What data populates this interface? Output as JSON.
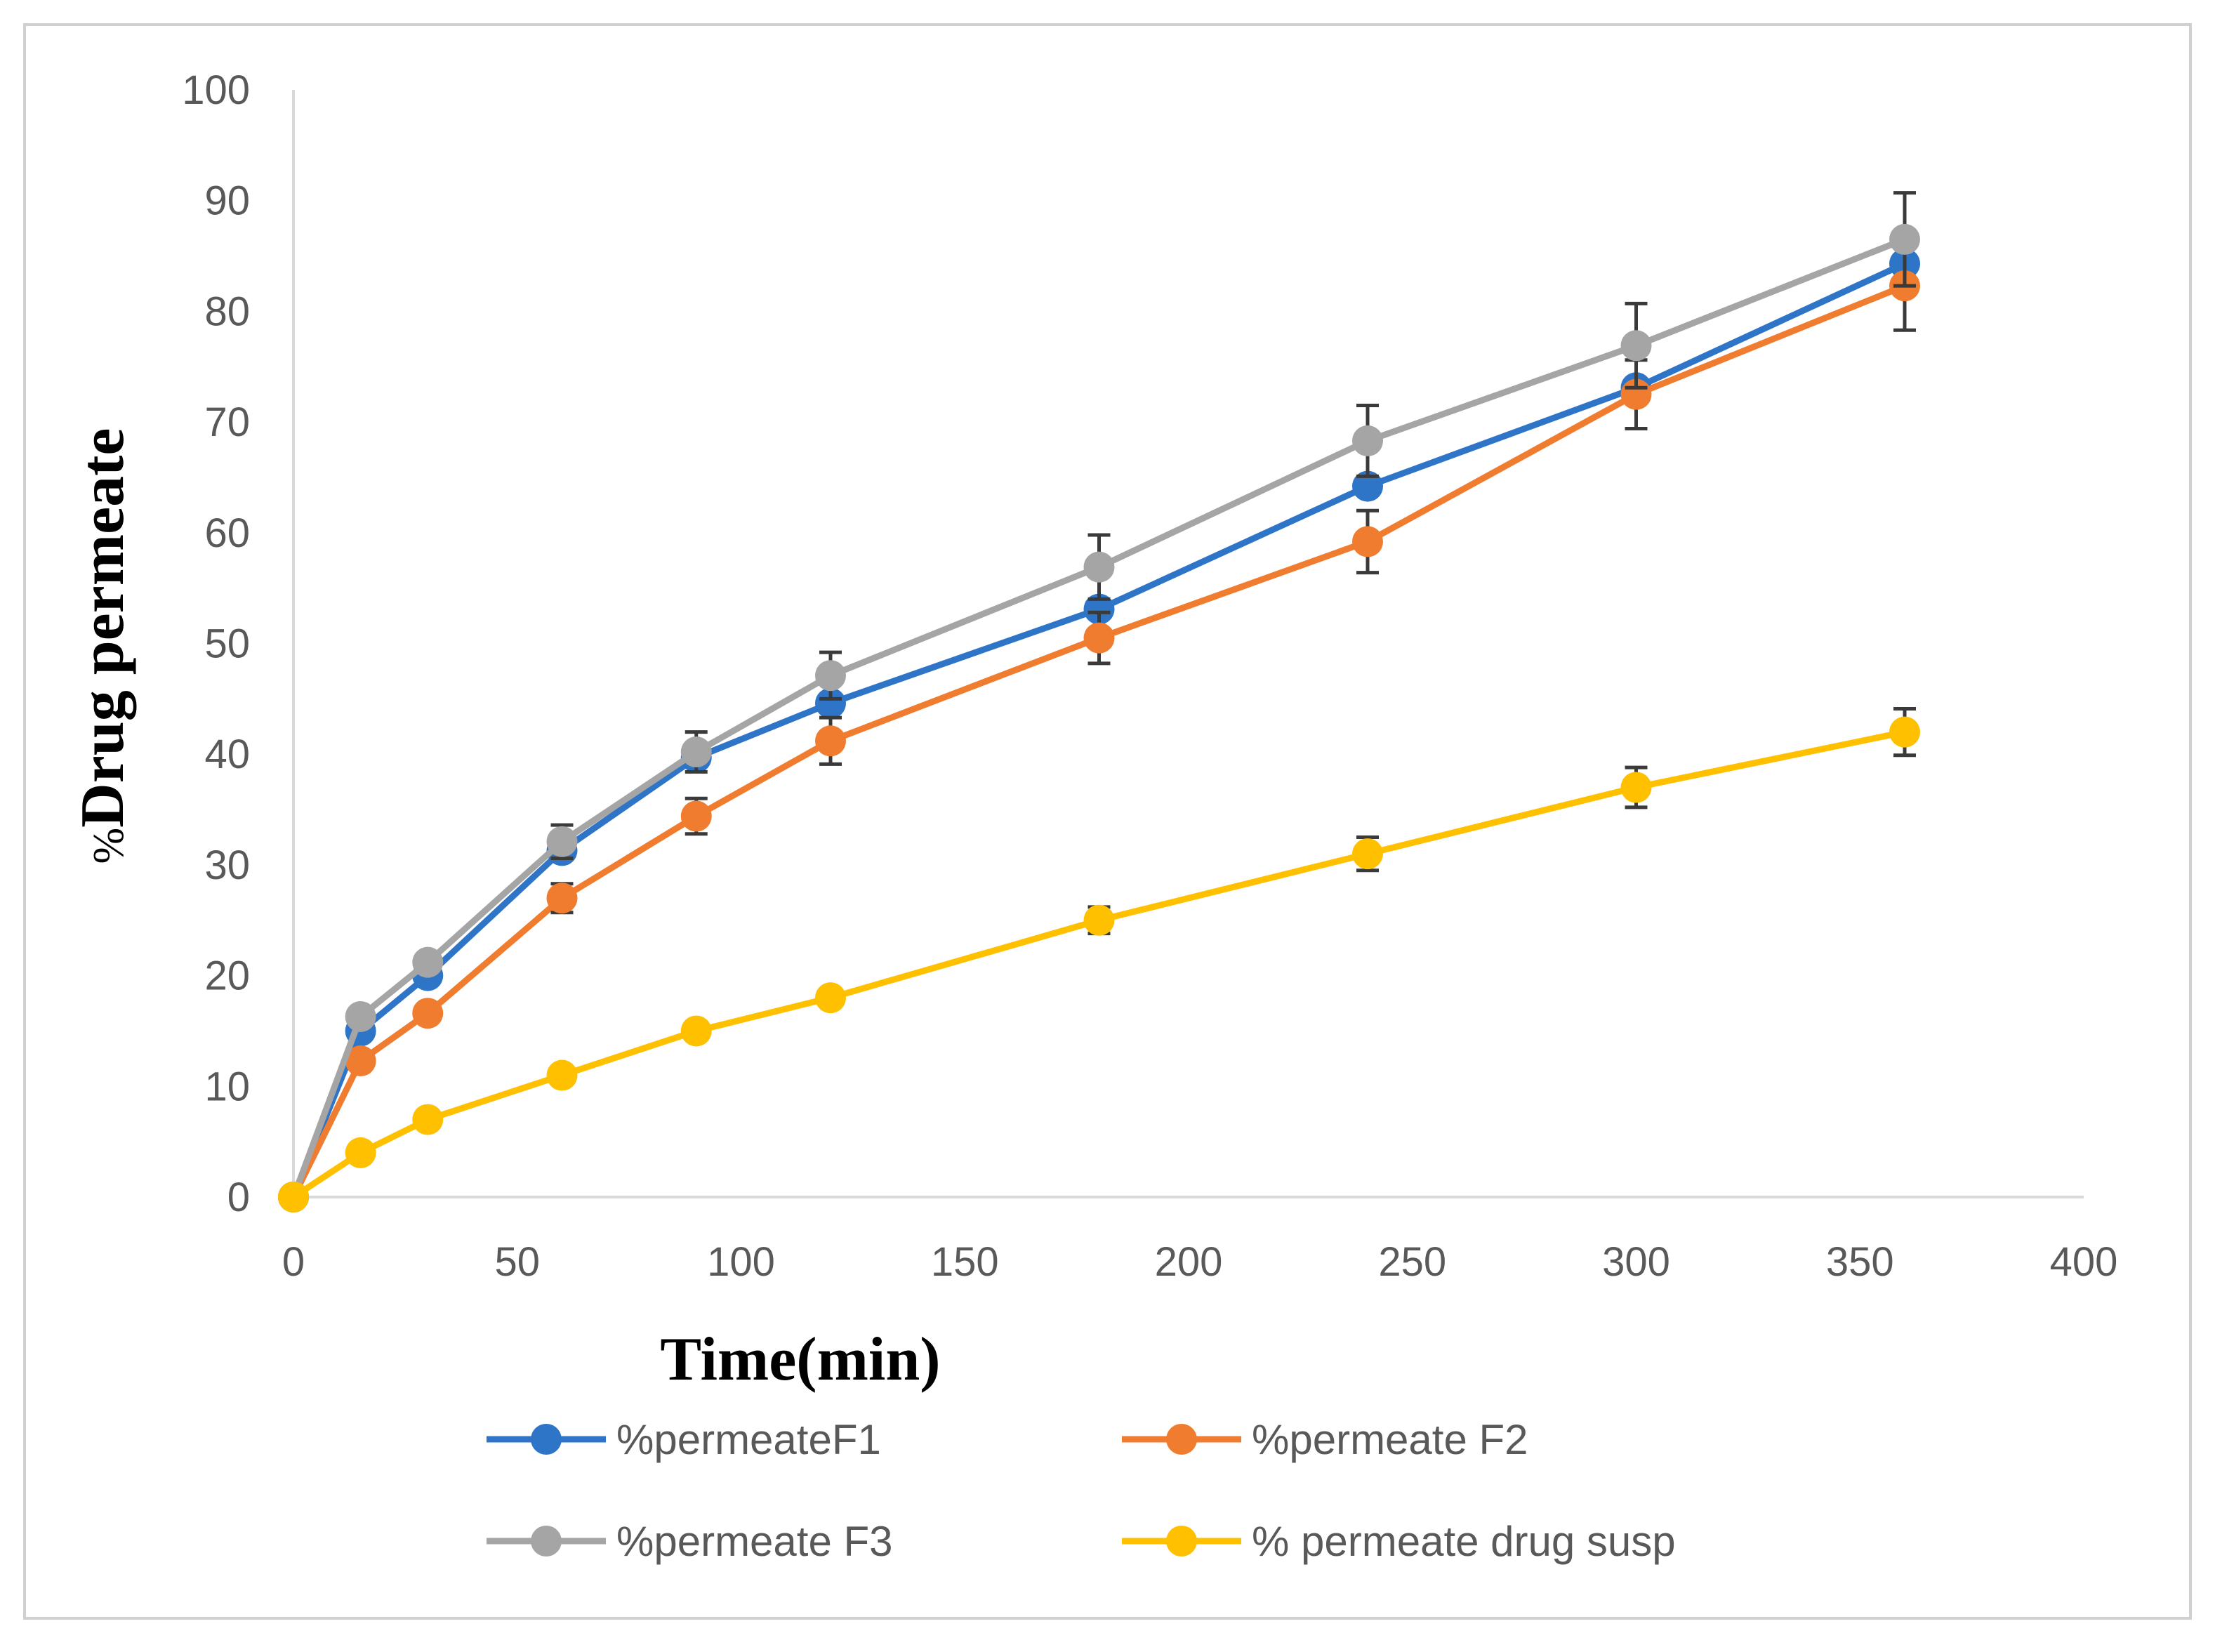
{
  "chart_data": {
    "type": "line",
    "xlabel": "Time(min)",
    "ylabel": "Drug permeate",
    "ylabel_prefix": "%",
    "xlim": [
      0,
      400
    ],
    "ylim": [
      0,
      100
    ],
    "xticks": [
      0,
      50,
      100,
      150,
      200,
      250,
      300,
      350,
      400
    ],
    "yticks": [
      0,
      10,
      20,
      30,
      40,
      50,
      60,
      70,
      80,
      90,
      100
    ],
    "grid": false,
    "legend_position": "bottom",
    "x": [
      0,
      15,
      30,
      60,
      90,
      120,
      180,
      240,
      300,
      360
    ],
    "series": [
      {
        "name": "%permeateF1",
        "color": "#2e75c7",
        "values": [
          0,
          15,
          20,
          31.3,
          39.7,
          44.6,
          53.1,
          64.2,
          73.1,
          84.3
        ],
        "errors": [
          0,
          0,
          0,
          0,
          0,
          0,
          0,
          0,
          0,
          0
        ]
      },
      {
        "name": "%permeate F2",
        "color": "#f07c30",
        "values": [
          0,
          12.3,
          16.6,
          27,
          34.4,
          41.2,
          50.5,
          59.2,
          72.5,
          82.3
        ],
        "errors": [
          0,
          0,
          0,
          1.3,
          1.6,
          2.1,
          2.3,
          2.8,
          3.1,
          4.0
        ]
      },
      {
        "name": "%permeate F3",
        "color": "#a5a5a5",
        "values": [
          0,
          16.3,
          21.2,
          32.1,
          40.2,
          47.1,
          56.9,
          68.3,
          76.9,
          86.5
        ],
        "errors": [
          0,
          0,
          0.6,
          1.5,
          1.8,
          2.1,
          2.9,
          3.2,
          3.8,
          4.2
        ]
      },
      {
        "name": "% permeate drug susp",
        "color": "#ffc000",
        "values": [
          0,
          4,
          7,
          11,
          15,
          18,
          25,
          31,
          37,
          42
        ],
        "errors": [
          0,
          0,
          0,
          0,
          0,
          0,
          1.2,
          1.5,
          1.8,
          2.1
        ]
      }
    ]
  }
}
